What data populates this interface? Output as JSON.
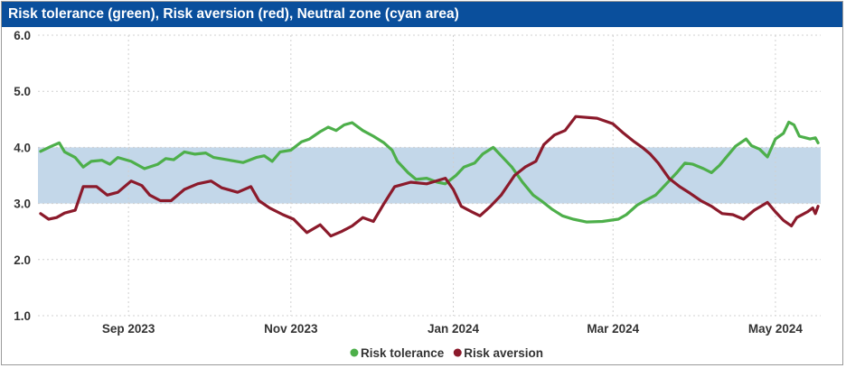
{
  "window": {
    "title": "Risk tolerance (green), Risk aversion (red), Neutral zone (cyan area)"
  },
  "chart_data": {
    "type": "line",
    "title": "Risk tolerance (green), Risk aversion (red), Neutral zone (cyan area)",
    "xlabel": "",
    "ylabel": "",
    "ylim": [
      1.0,
      6.0
    ],
    "yticks": [
      "1.0",
      "2.0",
      "3.0",
      "4.0",
      "5.0",
      "6.0"
    ],
    "x_range": [
      "2023-07-29",
      "2024-05-18"
    ],
    "xticks": [
      {
        "date": "2023-09-01",
        "label": "Sep 2023"
      },
      {
        "date": "2023-11-01",
        "label": "Nov 2023"
      },
      {
        "date": "2024-01-01",
        "label": "Jan 2024"
      },
      {
        "date": "2024-03-01",
        "label": "Mar 2024"
      },
      {
        "date": "2024-05-01",
        "label": "May 2024"
      }
    ],
    "grid": true,
    "legend_position": "bottom-center",
    "neutral_zone": {
      "y0": 3.0,
      "y1": 4.0,
      "color": "#c3d7e9"
    },
    "series": [
      {
        "name": "Risk tolerance",
        "color": "#4daf4a",
        "points": [
          [
            "2023-07-30",
            3.93
          ],
          [
            "2023-08-03",
            4.02
          ],
          [
            "2023-08-06",
            4.08
          ],
          [
            "2023-08-08",
            3.92
          ],
          [
            "2023-08-12",
            3.82
          ],
          [
            "2023-08-15",
            3.65
          ],
          [
            "2023-08-18",
            3.75
          ],
          [
            "2023-08-22",
            3.77
          ],
          [
            "2023-08-25",
            3.7
          ],
          [
            "2023-08-28",
            3.82
          ],
          [
            "2023-09-02",
            3.75
          ],
          [
            "2023-09-07",
            3.62
          ],
          [
            "2023-09-12",
            3.7
          ],
          [
            "2023-09-15",
            3.8
          ],
          [
            "2023-09-18",
            3.78
          ],
          [
            "2023-09-22",
            3.92
          ],
          [
            "2023-09-26",
            3.88
          ],
          [
            "2023-09-30",
            3.9
          ],
          [
            "2023-10-03",
            3.82
          ],
          [
            "2023-10-08",
            3.78
          ],
          [
            "2023-10-14",
            3.73
          ],
          [
            "2023-10-19",
            3.82
          ],
          [
            "2023-10-22",
            3.85
          ],
          [
            "2023-10-25",
            3.75
          ],
          [
            "2023-10-28",
            3.92
          ],
          [
            "2023-11-01",
            3.95
          ],
          [
            "2023-11-05",
            4.1
          ],
          [
            "2023-11-08",
            4.15
          ],
          [
            "2023-11-12",
            4.28
          ],
          [
            "2023-11-15",
            4.36
          ],
          [
            "2023-11-18",
            4.3
          ],
          [
            "2023-11-21",
            4.4
          ],
          [
            "2023-11-24",
            4.44
          ],
          [
            "2023-11-28",
            4.3
          ],
          [
            "2023-12-02",
            4.2
          ],
          [
            "2023-12-06",
            4.08
          ],
          [
            "2023-12-09",
            3.95
          ],
          [
            "2023-12-11",
            3.75
          ],
          [
            "2023-12-15",
            3.55
          ],
          [
            "2023-12-18",
            3.43
          ],
          [
            "2023-12-22",
            3.45
          ],
          [
            "2023-12-26",
            3.38
          ],
          [
            "2023-12-29",
            3.35
          ],
          [
            "2024-01-02",
            3.5
          ],
          [
            "2024-01-05",
            3.65
          ],
          [
            "2024-01-09",
            3.72
          ],
          [
            "2024-01-12",
            3.88
          ],
          [
            "2024-01-16",
            4.0
          ],
          [
            "2024-01-19",
            3.85
          ],
          [
            "2024-01-23",
            3.65
          ],
          [
            "2024-01-27",
            3.38
          ],
          [
            "2024-01-31",
            3.15
          ],
          [
            "2024-02-03",
            3.05
          ],
          [
            "2024-02-07",
            2.9
          ],
          [
            "2024-02-11",
            2.78
          ],
          [
            "2024-02-15",
            2.72
          ],
          [
            "2024-02-20",
            2.67
          ],
          [
            "2024-02-26",
            2.68
          ],
          [
            "2024-03-03",
            2.72
          ],
          [
            "2024-03-06",
            2.8
          ],
          [
            "2024-03-10",
            2.97
          ],
          [
            "2024-03-13",
            3.05
          ],
          [
            "2024-03-17",
            3.15
          ],
          [
            "2024-03-21",
            3.35
          ],
          [
            "2024-03-25",
            3.55
          ],
          [
            "2024-03-28",
            3.72
          ],
          [
            "2024-03-31",
            3.7
          ],
          [
            "2024-04-04",
            3.62
          ],
          [
            "2024-04-07",
            3.55
          ],
          [
            "2024-04-10",
            3.68
          ],
          [
            "2024-04-13",
            3.85
          ],
          [
            "2024-04-16",
            4.02
          ],
          [
            "2024-04-20",
            4.15
          ],
          [
            "2024-04-22",
            4.03
          ],
          [
            "2024-04-25",
            3.97
          ],
          [
            "2024-04-28",
            3.83
          ],
          [
            "2024-05-01",
            4.15
          ],
          [
            "2024-05-04",
            4.25
          ],
          [
            "2024-05-06",
            4.45
          ],
          [
            "2024-05-08",
            4.4
          ],
          [
            "2024-05-10",
            4.2
          ],
          [
            "2024-05-14",
            4.15
          ],
          [
            "2024-05-16",
            4.17
          ],
          [
            "2024-05-17",
            4.08
          ]
        ]
      },
      {
        "name": "Risk aversion",
        "color": "#8b1a2b",
        "points": [
          [
            "2023-07-30",
            2.82
          ],
          [
            "2023-08-02",
            2.72
          ],
          [
            "2023-08-05",
            2.75
          ],
          [
            "2023-08-08",
            2.83
          ],
          [
            "2023-08-12",
            2.88
          ],
          [
            "2023-08-15",
            3.3
          ],
          [
            "2023-08-20",
            3.3
          ],
          [
            "2023-08-24",
            3.15
          ],
          [
            "2023-08-28",
            3.2
          ],
          [
            "2023-09-02",
            3.4
          ],
          [
            "2023-09-06",
            3.32
          ],
          [
            "2023-09-09",
            3.15
          ],
          [
            "2023-09-13",
            3.05
          ],
          [
            "2023-09-17",
            3.05
          ],
          [
            "2023-09-22",
            3.25
          ],
          [
            "2023-09-27",
            3.35
          ],
          [
            "2023-10-02",
            3.4
          ],
          [
            "2023-10-06",
            3.28
          ],
          [
            "2023-10-12",
            3.2
          ],
          [
            "2023-10-17",
            3.3
          ],
          [
            "2023-10-20",
            3.05
          ],
          [
            "2023-10-24",
            2.92
          ],
          [
            "2023-10-29",
            2.8
          ],
          [
            "2023-11-02",
            2.72
          ],
          [
            "2023-11-07",
            2.48
          ],
          [
            "2023-11-12",
            2.62
          ],
          [
            "2023-11-16",
            2.42
          ],
          [
            "2023-11-20",
            2.5
          ],
          [
            "2023-11-24",
            2.6
          ],
          [
            "2023-11-28",
            2.75
          ],
          [
            "2023-12-02",
            2.68
          ],
          [
            "2023-12-06",
            3.0
          ],
          [
            "2023-12-10",
            3.3
          ],
          [
            "2023-12-16",
            3.38
          ],
          [
            "2023-12-22",
            3.35
          ],
          [
            "2023-12-29",
            3.45
          ],
          [
            "2024-01-01",
            3.25
          ],
          [
            "2024-01-04",
            2.95
          ],
          [
            "2024-01-08",
            2.85
          ],
          [
            "2024-01-11",
            2.78
          ],
          [
            "2024-01-15",
            2.95
          ],
          [
            "2024-01-19",
            3.15
          ],
          [
            "2024-01-24",
            3.5
          ],
          [
            "2024-01-28",
            3.65
          ],
          [
            "2024-02-01",
            3.75
          ],
          [
            "2024-02-04",
            4.05
          ],
          [
            "2024-02-08",
            4.22
          ],
          [
            "2024-02-12",
            4.3
          ],
          [
            "2024-02-16",
            4.55
          ],
          [
            "2024-02-24",
            4.52
          ],
          [
            "2024-03-01",
            4.42
          ],
          [
            "2024-03-05",
            4.25
          ],
          [
            "2024-03-09",
            4.1
          ],
          [
            "2024-03-12",
            4.0
          ],
          [
            "2024-03-15",
            3.88
          ],
          [
            "2024-03-18",
            3.72
          ],
          [
            "2024-03-22",
            3.45
          ],
          [
            "2024-03-26",
            3.3
          ],
          [
            "2024-03-30",
            3.18
          ],
          [
            "2024-04-03",
            3.05
          ],
          [
            "2024-04-07",
            2.95
          ],
          [
            "2024-04-11",
            2.82
          ],
          [
            "2024-04-15",
            2.8
          ],
          [
            "2024-04-19",
            2.72
          ],
          [
            "2024-04-23",
            2.88
          ],
          [
            "2024-04-28",
            3.02
          ],
          [
            "2024-05-01",
            2.85
          ],
          [
            "2024-05-04",
            2.7
          ],
          [
            "2024-05-07",
            2.6
          ],
          [
            "2024-05-09",
            2.75
          ],
          [
            "2024-05-13",
            2.85
          ],
          [
            "2024-05-15",
            2.92
          ],
          [
            "2024-05-16",
            2.82
          ],
          [
            "2024-05-17",
            2.95
          ]
        ]
      }
    ]
  }
}
